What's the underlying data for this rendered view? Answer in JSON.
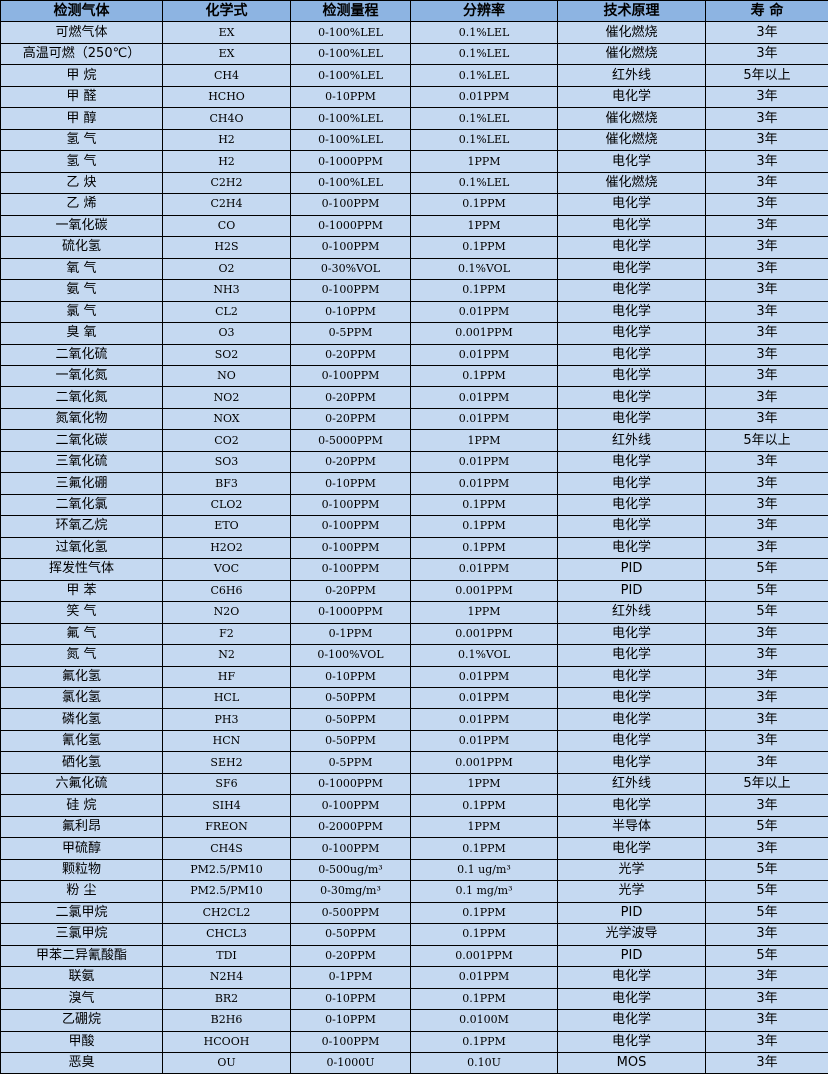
{
  "table": {
    "headers": [
      "检测气体",
      "化学式",
      "检测量程",
      "分辨率",
      "技术原理",
      "寿  命"
    ],
    "rows": [
      [
        "可燃气体",
        "EX",
        "0-100%LEL",
        "0.1%LEL",
        "催化燃烧",
        "3年"
      ],
      [
        "高温可燃（250℃）",
        "EX",
        "0-100%LEL",
        "0.1%LEL",
        "催化燃烧",
        "3年"
      ],
      [
        "甲 烷",
        "CH4",
        "0-100%LEL",
        "0.1%LEL",
        "红外线",
        "5年以上"
      ],
      [
        "甲 醛",
        "HCHO",
        "0-10PPM",
        "0.01PPM",
        "电化学",
        "3年"
      ],
      [
        "甲 醇",
        "CH4O",
        "0-100%LEL",
        "0.1%LEL",
        "催化燃烧",
        "3年"
      ],
      [
        "氢 气",
        "H2",
        "0-100%LEL",
        "0.1%LEL",
        "催化燃烧",
        "3年"
      ],
      [
        "氢 气",
        "H2",
        "0-1000PPM",
        "1PPM",
        "电化学",
        "3年"
      ],
      [
        "乙 炔",
        "C2H2",
        "0-100%LEL",
        "0.1%LEL",
        "催化燃烧",
        "3年"
      ],
      [
        "乙 烯",
        "C2H4",
        "0-100PPM",
        "0.1PPM",
        "电化学",
        "3年"
      ],
      [
        "一氧化碳",
        "CO",
        "0-1000PPM",
        "1PPM",
        "电化学",
        "3年"
      ],
      [
        "硫化氢",
        "H2S",
        "0-100PPM",
        "0.1PPM",
        "电化学",
        "3年"
      ],
      [
        "氧 气",
        "O2",
        "0-30%VOL",
        "0.1%VOL",
        "电化学",
        "3年"
      ],
      [
        "氨 气",
        "NH3",
        "0-100PPM",
        "0.1PPM",
        "电化学",
        "3年"
      ],
      [
        "氯 气",
        "CL2",
        "0-10PPM",
        "0.01PPM",
        "电化学",
        "3年"
      ],
      [
        "臭 氧",
        "O3",
        "0-5PPM",
        "0.001PPM",
        "电化学",
        "3年"
      ],
      [
        "二氧化硫",
        "SO2",
        "0-20PPM",
        "0.01PPM",
        "电化学",
        "3年"
      ],
      [
        "一氧化氮",
        "NO",
        "0-100PPM",
        "0.1PPM",
        "电化学",
        "3年"
      ],
      [
        "二氧化氮",
        "NO2",
        "0-20PPM",
        "0.01PPM",
        "电化学",
        "3年"
      ],
      [
        "氮氧化物",
        "NOX",
        "0-20PPM",
        "0.01PPM",
        "电化学",
        "3年"
      ],
      [
        "二氧化碳",
        "CO2",
        "0-5000PPM",
        "1PPM",
        "红外线",
        "5年以上"
      ],
      [
        "三氧化硫",
        "SO3",
        "0-20PPM",
        "0.01PPM",
        "电化学",
        "3年"
      ],
      [
        "三氟化硼",
        "BF3",
        "0-10PPM",
        "0.01PPM",
        "电化学",
        "3年"
      ],
      [
        "二氧化氯",
        "CLO2",
        "0-100PPM",
        "0.1PPM",
        "电化学",
        "3年"
      ],
      [
        "环氧乙烷",
        "ETO",
        "0-100PPM",
        "0.1PPM",
        "电化学",
        "3年"
      ],
      [
        "过氧化氢",
        "H2O2",
        "0-100PPM",
        "0.1PPM",
        "电化学",
        "3年"
      ],
      [
        "挥发性气体",
        "VOC",
        "0-100PPM",
        "0.01PPM",
        "PID",
        "5年"
      ],
      [
        "甲 苯",
        "C6H6",
        "0-20PPM",
        "0.001PPM",
        "PID",
        "5年"
      ],
      [
        "笑 气",
        "N2O",
        "0-1000PPM",
        "1PPM",
        "红外线",
        "5年"
      ],
      [
        "氟 气",
        "F2",
        "0-1PPM",
        "0.001PPM",
        "电化学",
        "3年"
      ],
      [
        "氮 气",
        "N2",
        "0-100%VOL",
        "0.1%VOL",
        "电化学",
        "3年"
      ],
      [
        "氟化氢",
        "HF",
        "0-10PPM",
        "0.01PPM",
        "电化学",
        "3年"
      ],
      [
        "氯化氢",
        "HCL",
        "0-50PPM",
        "0.01PPM",
        "电化学",
        "3年"
      ],
      [
        "磷化氢",
        "PH3",
        "0-50PPM",
        "0.01PPM",
        "电化学",
        "3年"
      ],
      [
        "氰化氢",
        "HCN",
        "0-50PPM",
        "0.01PPM",
        "电化学",
        "3年"
      ],
      [
        "硒化氢",
        "SEH2",
        "0-5PPM",
        "0.001PPM",
        "电化学",
        "3年"
      ],
      [
        "六氟化硫",
        "SF6",
        "0-1000PPM",
        "1PPM",
        "红外线",
        "5年以上"
      ],
      [
        "硅 烷",
        "SIH4",
        "0-100PPM",
        "0.1PPM",
        "电化学",
        "3年"
      ],
      [
        "氟利昂",
        "FREON",
        "0-2000PPM",
        "1PPM",
        "半导体",
        "5年"
      ],
      [
        "甲硫醇",
        "CH4S",
        "0-100PPM",
        "0.1PPM",
        "电化学",
        "3年"
      ],
      [
        "颗粒物",
        "PM2.5/PM10",
        "0-500ug/m³",
        "0.1 ug/m³",
        "光学",
        "5年"
      ],
      [
        "粉 尘",
        "PM2.5/PM10",
        "0-30mg/m³",
        "0.1 mg/m³",
        "光学",
        "5年"
      ],
      [
        "二氯甲烷",
        "CH2CL2",
        "0-500PPM",
        "0.1PPM",
        "PID",
        "5年"
      ],
      [
        "三氯甲烷",
        "CHCL3",
        "0-50PPM",
        "0.1PPM",
        "光学波导",
        "3年"
      ],
      [
        "甲苯二异氰酸酯",
        "TDI",
        "0-20PPM",
        "0.001PPM",
        "PID",
        "5年"
      ],
      [
        "联氨",
        "N2H4",
        "0-1PPM",
        "0.01PPM",
        "电化学",
        "3年"
      ],
      [
        "溴气",
        "BR2",
        "0-10PPM",
        "0.1PPM",
        "电化学",
        "3年"
      ],
      [
        "乙硼烷",
        "B2H6",
        "0-10PPM",
        "0.0100M",
        "电化学",
        "3年"
      ],
      [
        "甲酸",
        "HCOOH",
        "0-100PPM",
        "0.1PPM",
        "电化学",
        "3年"
      ],
      [
        "恶臭",
        "OU",
        "0-1000U",
        "0.10U",
        "MOS",
        "3年"
      ]
    ]
  },
  "colors": {
    "header_bg": "#8db4e2",
    "row_bg": "#c5d9f1",
    "border": "#000000"
  }
}
